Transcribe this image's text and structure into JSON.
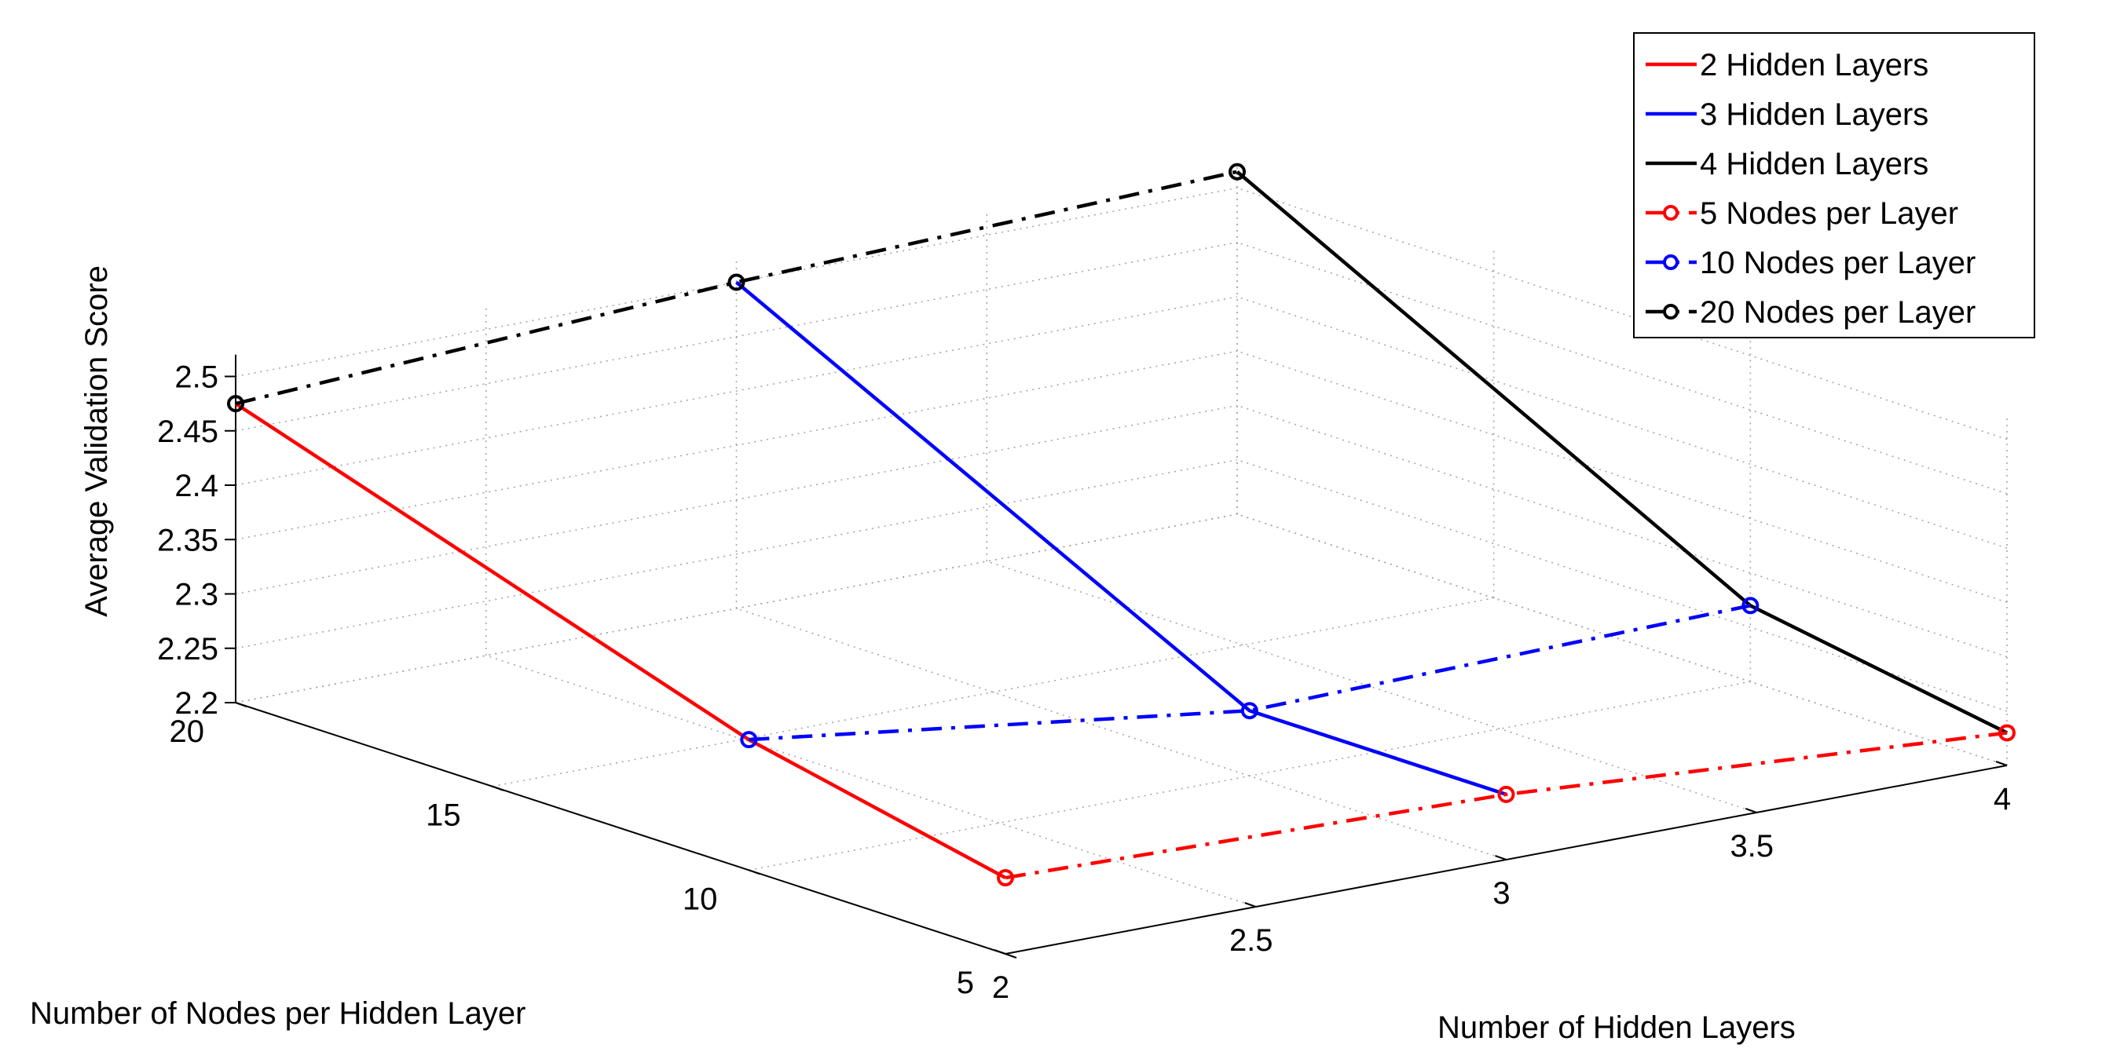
{
  "chart_data": {
    "type": "line",
    "projection": "3d",
    "title": "",
    "xlabel": "Number of Hidden Layers",
    "ylabel": "Number of Nodes per Hidden Layer",
    "zlabel": "Average Validation Score",
    "x_ticks": [
      2,
      2.5,
      3,
      3.5,
      4
    ],
    "x_tick_labels": [
      "2",
      "2.5",
      "3",
      "3.5",
      "4"
    ],
    "y_ticks": [
      5,
      10,
      15,
      20
    ],
    "y_tick_labels": [
      "5",
      "10",
      "15",
      "20"
    ],
    "z_ticks": [
      2.2,
      2.25,
      2.3,
      2.35,
      2.4,
      2.45,
      2.5
    ],
    "z_tick_labels": [
      "2.2",
      "2.25",
      "2.3",
      "2.35",
      "2.4",
      "2.45",
      "2.5"
    ],
    "xlim": [
      2,
      4
    ],
    "ylim": [
      5,
      20
    ],
    "zlim": [
      2.2,
      2.52
    ],
    "grid": true,
    "legend_position": "top-right",
    "series": [
      {
        "name": "2 Hidden Layers",
        "color": "#ff0000",
        "style": "solid",
        "marker": "none",
        "points": [
          {
            "x": 2,
            "y": 5,
            "z": 2.27
          },
          {
            "x": 2,
            "y": 10,
            "z": 2.32
          },
          {
            "x": 2,
            "y": 20,
            "z": 2.475
          }
        ]
      },
      {
        "name": "3 Hidden Layers",
        "color": "#0000ff",
        "style": "solid",
        "marker": "none",
        "points": [
          {
            "x": 3,
            "y": 5,
            "z": 2.26
          },
          {
            "x": 3,
            "y": 10,
            "z": 2.26
          },
          {
            "x": 3,
            "y": 20,
            "z": 2.5
          }
        ]
      },
      {
        "name": "4 Hidden Layers",
        "color": "#000000",
        "style": "solid",
        "marker": "none",
        "points": [
          {
            "x": 4,
            "y": 5,
            "z": 2.23
          },
          {
            "x": 4,
            "y": 10,
            "z": 2.27
          },
          {
            "x": 4,
            "y": 20,
            "z": 2.515
          }
        ]
      },
      {
        "name": "5 Nodes per Layer",
        "color": "#ff0000",
        "style": "dashdot",
        "marker": "circle",
        "points": [
          {
            "x": 2,
            "y": 5,
            "z": 2.27
          },
          {
            "x": 3,
            "y": 5,
            "z": 2.26
          },
          {
            "x": 4,
            "y": 5,
            "z": 2.23
          }
        ]
      },
      {
        "name": "10 Nodes per Layer",
        "color": "#0000ff",
        "style": "dashdot",
        "marker": "circle",
        "points": [
          {
            "x": 2,
            "y": 10,
            "z": 2.32
          },
          {
            "x": 3,
            "y": 10,
            "z": 2.26
          },
          {
            "x": 4,
            "y": 10,
            "z": 2.27
          }
        ]
      },
      {
        "name": "20 Nodes per Layer",
        "color": "#000000",
        "style": "dashdot",
        "marker": "circle",
        "points": [
          {
            "x": 2,
            "y": 20,
            "z": 2.475
          },
          {
            "x": 3,
            "y": 20,
            "z": 2.5
          },
          {
            "x": 4,
            "y": 20,
            "z": 2.515
          }
        ]
      }
    ]
  }
}
